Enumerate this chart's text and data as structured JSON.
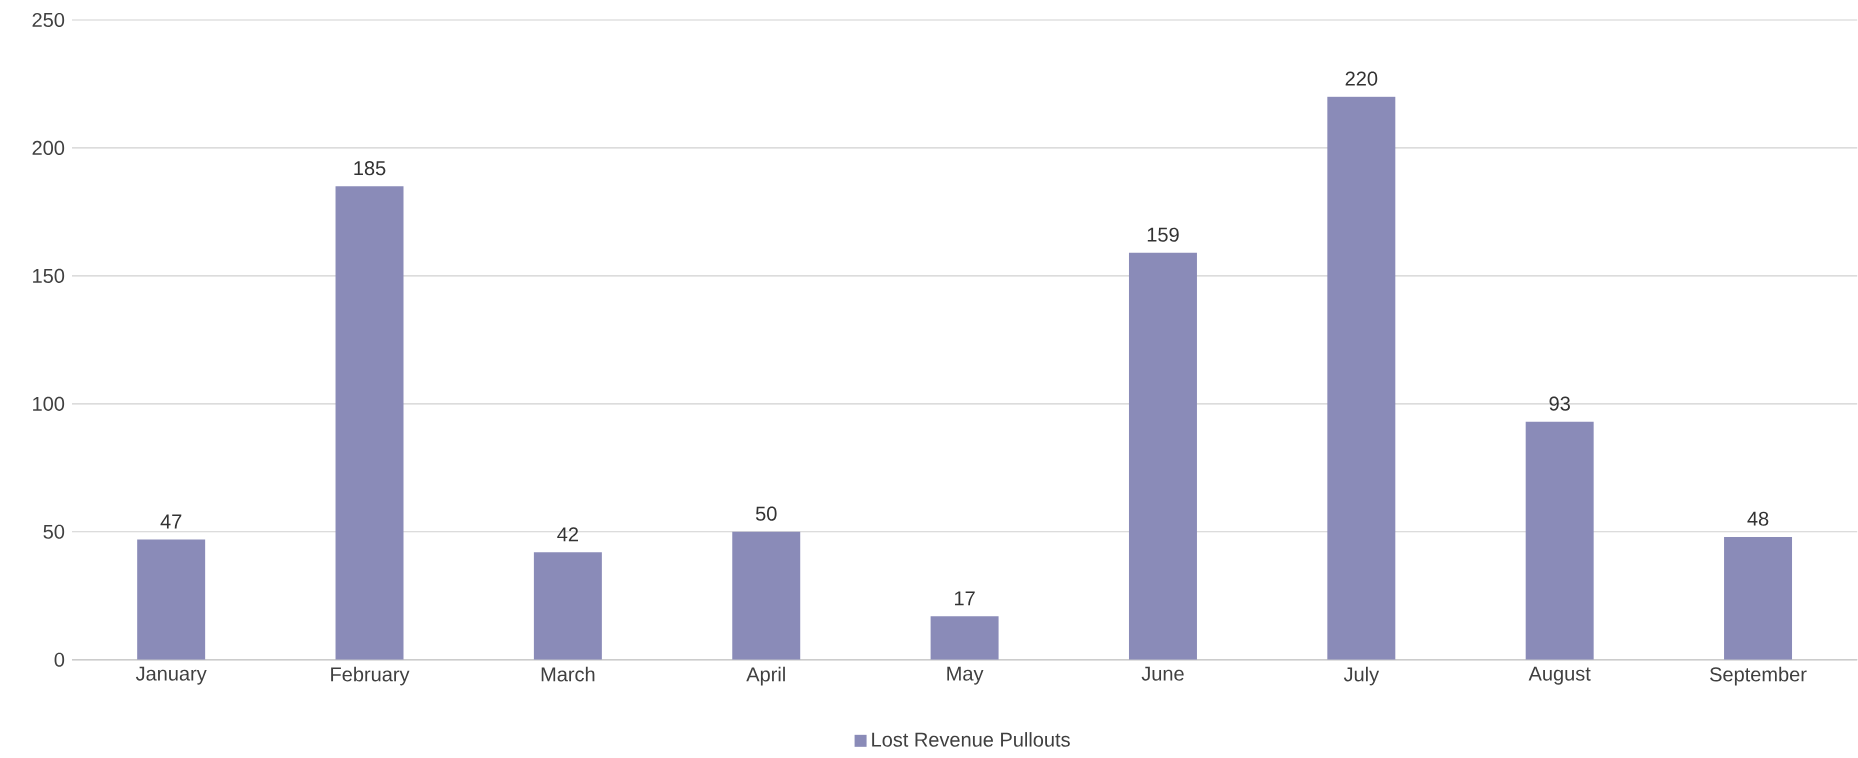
{
  "chart_data": {
    "type": "bar",
    "categories": [
      "January",
      "February",
      "March",
      "April",
      "May",
      "June",
      "July",
      "August",
      "September"
    ],
    "series": [
      {
        "name": "Lost Revenue Pullouts",
        "color": "#8a8bb8",
        "values": [
          47,
          185,
          42,
          50,
          17,
          159,
          220,
          93,
          48
        ]
      }
    ],
    "ylim": [
      0,
      250
    ],
    "yticks": [
      0,
      50,
      100,
      150,
      200,
      250
    ],
    "grid": "y",
    "legend": "bottom",
    "data_labels": true
  }
}
